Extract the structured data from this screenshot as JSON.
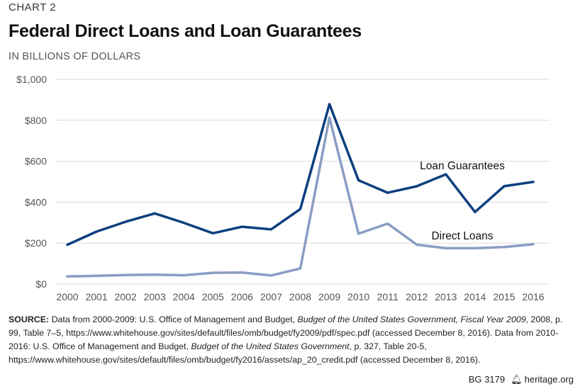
{
  "header": {
    "chart_label": "CHART 2",
    "title": "Federal Direct Loans and Loan Guarantees",
    "subtitle": "IN BILLIONS OF DOLLARS"
  },
  "source": {
    "lead": "SOURCE:",
    "part1": " Data from 2000-2009: U.S. Office of Management and Budget, ",
    "italic1": "Budget of the United States Government, Fiscal Year 2009",
    "part2": ", 2008, p. 99, Table 7–5, https://www.whitehouse.gov/sites/default/files/omb/budget/fy2009/pdf/spec.pdf (accessed December 8, 2016). Data from 2010-2016: U.S. Office of Management and Budget, ",
    "italic2": "Budget of the United States Government",
    "part3": ", p. 327, Table 20-5, https://www.whitehouse.gov/sites/default/files/omb/budget/fy2016/assets/ap_20_credit.pdf (accessed December 8, 2016)."
  },
  "footer": {
    "code": "BG 3179",
    "bell_icon": "bell-icon",
    "site": "heritage.org"
  },
  "colors": {
    "loan_guarantees": "#0d3f7e",
    "direct_loans": "#8a9dc4",
    "grid": "#d9d9d9",
    "tick_text": "#555555"
  },
  "chart_data": {
    "type": "line",
    "title": "Federal Direct Loans and Loan Guarantees",
    "subtitle": "IN BILLIONS OF DOLLARS",
    "xlabel": "",
    "ylabel": "",
    "x": [
      "2000",
      "2001",
      "2002",
      "2003",
      "2004",
      "2005",
      "2006",
      "2007",
      "2008",
      "2009",
      "2010",
      "2011",
      "2012",
      "2013",
      "2014",
      "2015",
      "2016"
    ],
    "ylim": [
      0,
      1000
    ],
    "yticks": [
      0,
      200,
      400,
      600,
      800,
      1000
    ],
    "ytick_labels": [
      "$0",
      "$200",
      "$400",
      "$600",
      "$800",
      "$1,000"
    ],
    "grid": true,
    "series": [
      {
        "name": "Loan Guarantees",
        "values": [
          192,
          256,
          304,
          345,
          299,
          248,
          280,
          267,
          366,
          879,
          507,
          446,
          478,
          536,
          352,
          478,
          499
        ]
      },
      {
        "name": "Direct Loans",
        "values": [
          37,
          40,
          44,
          46,
          43,
          55,
          56,
          42,
          76,
          813,
          246,
          295,
          192,
          175,
          175,
          181,
          194
        ]
      }
    ]
  }
}
